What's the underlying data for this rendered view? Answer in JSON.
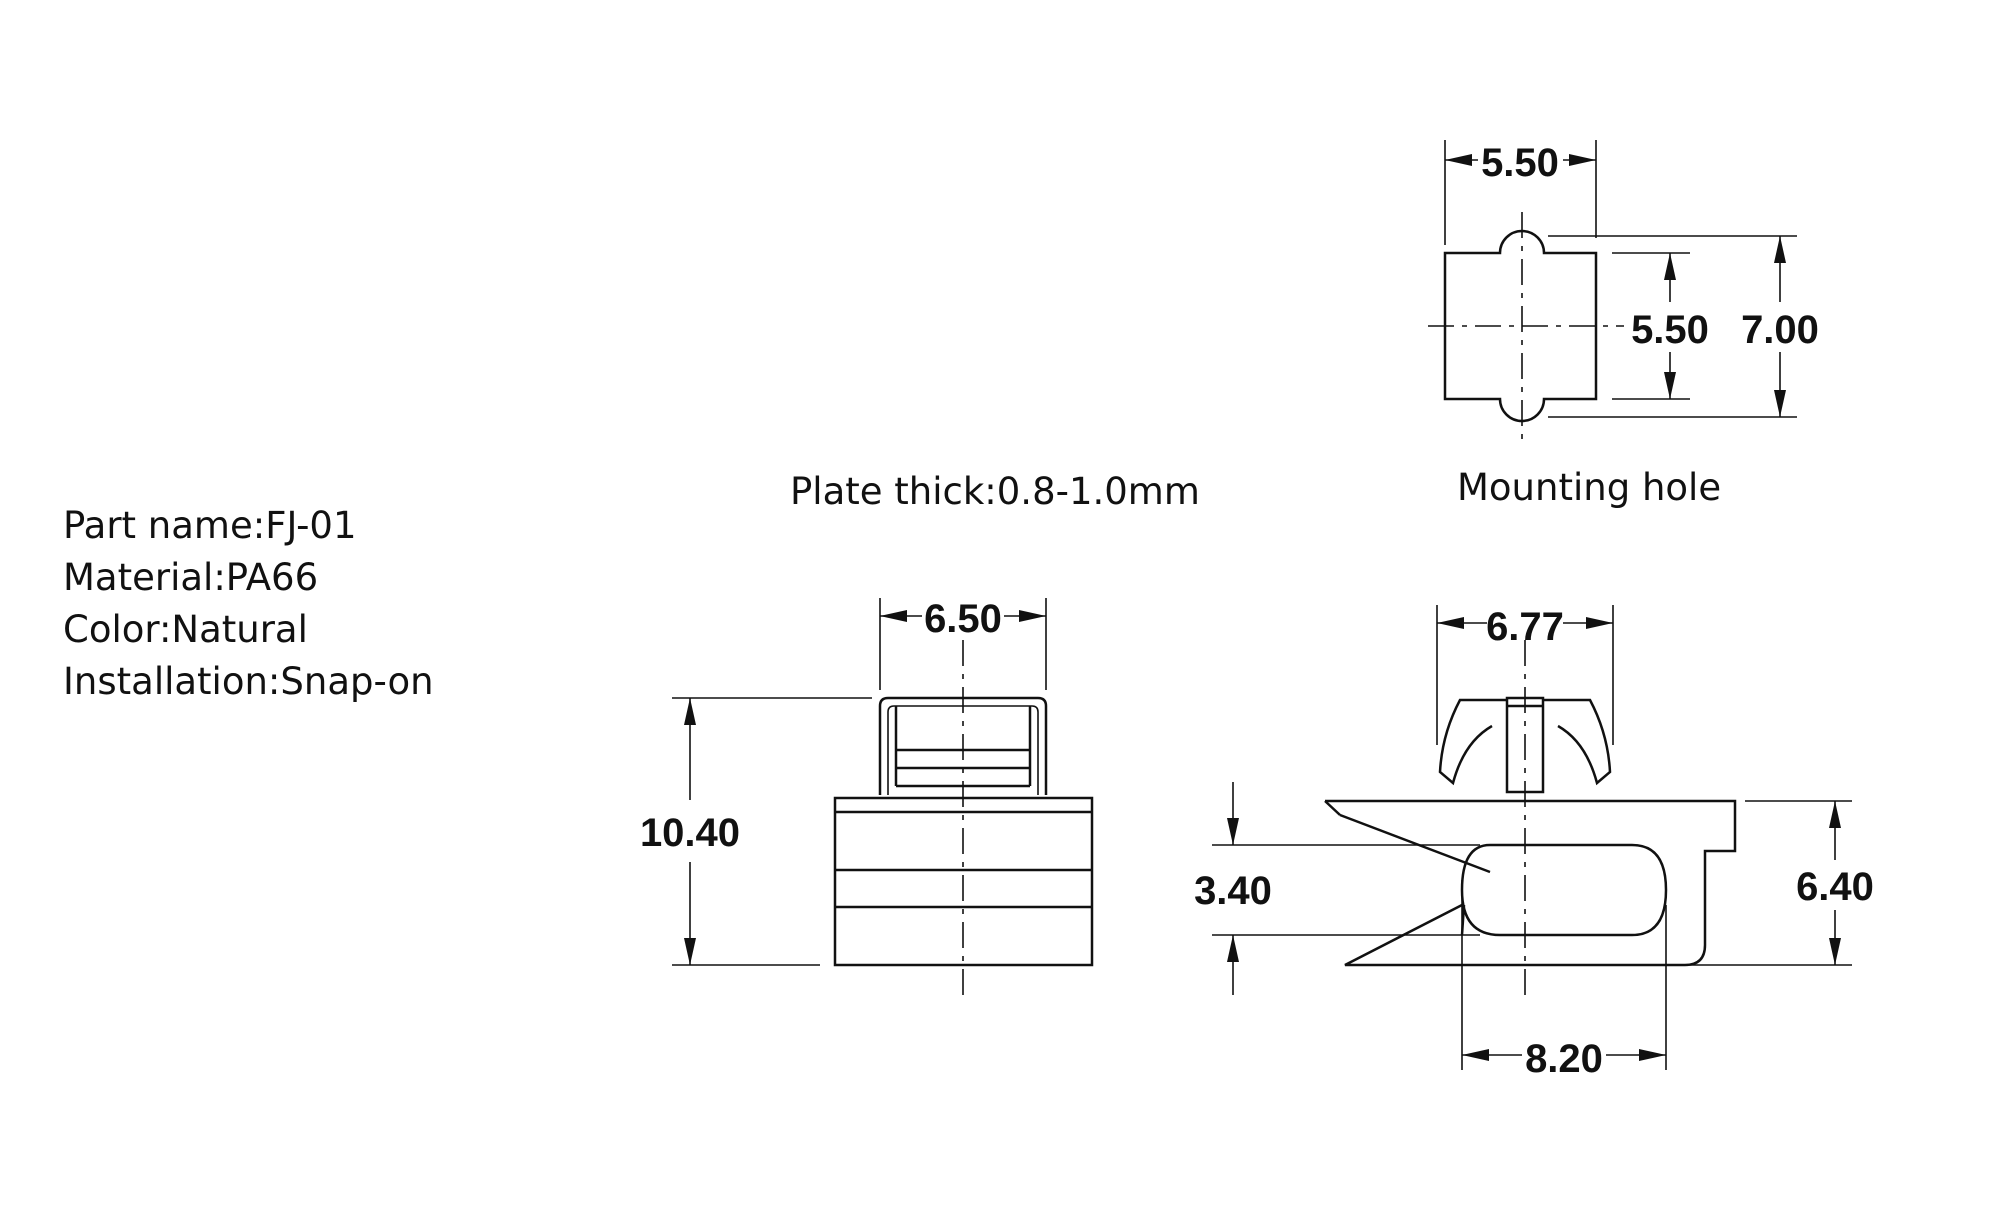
{
  "specs": {
    "part_name": "Part name:FJ-01",
    "material": "Material:PA66",
    "color": "Color:Natural",
    "installation": "Installation:Snap-on"
  },
  "captions": {
    "plate_thick": "Plate thick:0.8-1.0mm",
    "mounting_hole": "Mounting hole"
  },
  "dimensions": {
    "hole_width": "5.50",
    "hole_inner_height": "5.50",
    "hole_outer_height": "7.00",
    "front_width": "6.50",
    "front_height": "10.40",
    "side_top_width": "6.77",
    "side_gap": "3.40",
    "side_height": "6.40",
    "side_length": "8.20"
  }
}
